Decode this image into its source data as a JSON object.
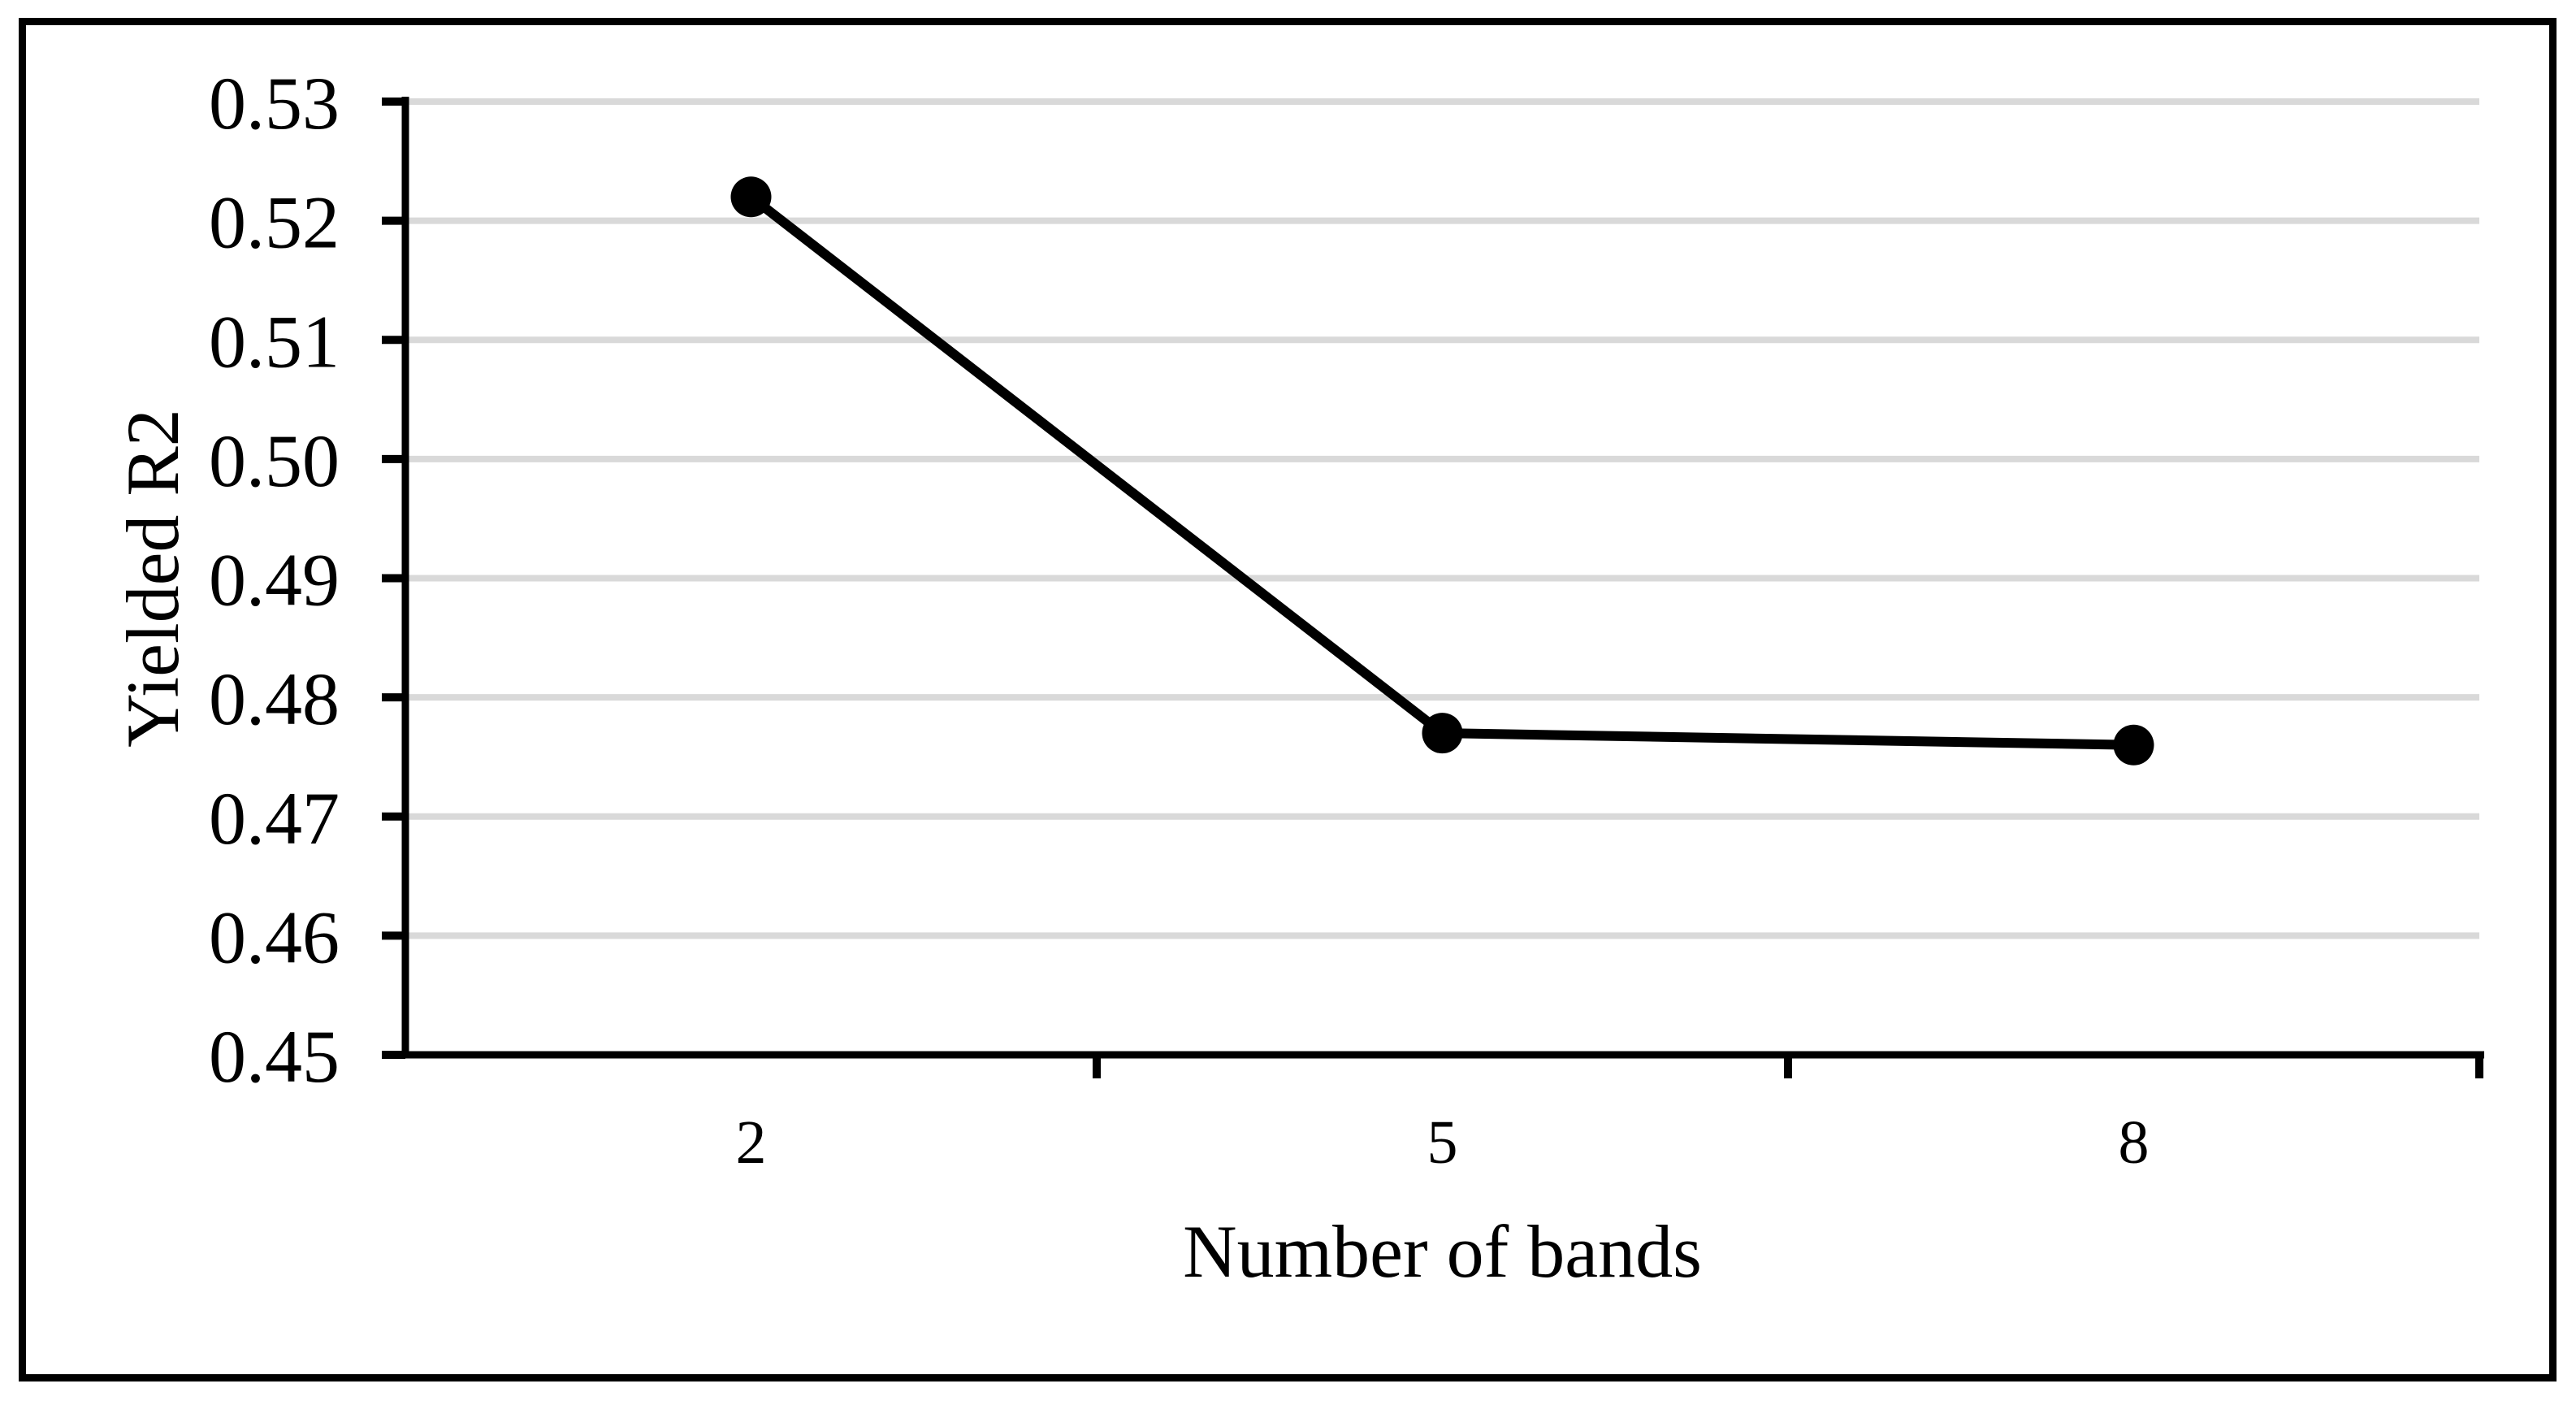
{
  "figure": {
    "background_color": "#ffffff",
    "border_color": "#000000"
  },
  "chart_data": {
    "type": "line",
    "categories": [
      "2",
      "5",
      "8"
    ],
    "values": [
      0.522,
      0.477,
      0.476
    ],
    "title": "",
    "xlabel": "Number of bands",
    "ylabel": "Yielded R2",
    "ylim": [
      0.45,
      0.53
    ],
    "ytick_step": 0.01,
    "ytick_labels": [
      "0.45",
      "0.46",
      "0.47",
      "0.48",
      "0.49",
      "0.50",
      "0.51",
      "0.52",
      "0.53"
    ],
    "grid": "horizontal",
    "gridline_color": "#d9d9d9",
    "line_color": "#000000",
    "marker_shape": "filled-circle",
    "legend": "none"
  }
}
